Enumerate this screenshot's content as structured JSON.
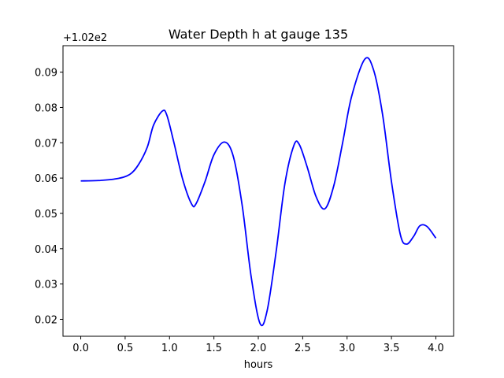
{
  "chart_data": {
    "type": "line",
    "title": "Water Depth h at gauge 135",
    "xlabel": "hours",
    "ylabel": "",
    "offset_label": "+1.02e2",
    "xlim": [
      -0.2,
      4.2
    ],
    "ylim": [
      0.0152,
      0.0975
    ],
    "x_ticks": [
      0.0,
      0.5,
      1.0,
      1.5,
      2.0,
      2.5,
      3.0,
      3.5,
      4.0
    ],
    "x_tick_labels": [
      "0.0",
      "0.5",
      "1.0",
      "1.5",
      "2.0",
      "2.5",
      "3.0",
      "3.5",
      "4.0"
    ],
    "y_ticks": [
      0.02,
      0.03,
      0.04,
      0.05,
      0.06,
      0.07,
      0.08,
      0.09
    ],
    "y_tick_labels": [
      "0.02",
      "0.03",
      "0.04",
      "0.05",
      "0.06",
      "0.07",
      "0.08",
      "0.09"
    ],
    "grid": false,
    "series": [
      {
        "color": "#0000ff",
        "x": [
          0.0,
          0.2,
          0.4,
          0.55,
          0.65,
          0.75,
          0.82,
          0.92,
          0.97,
          1.05,
          1.15,
          1.25,
          1.3,
          1.4,
          1.5,
          1.62,
          1.72,
          1.82,
          1.92,
          2.02,
          2.1,
          2.2,
          2.3,
          2.4,
          2.46,
          2.55,
          2.65,
          2.75,
          2.85,
          2.95,
          3.05,
          3.2,
          3.3,
          3.4,
          3.5,
          3.6,
          3.67,
          3.75,
          3.82,
          3.9,
          4.0
        ],
        "y": [
          0.0592,
          0.0593,
          0.0598,
          0.061,
          0.0638,
          0.0688,
          0.075,
          0.079,
          0.0778,
          0.07,
          0.0595,
          0.0526,
          0.0528,
          0.059,
          0.0666,
          0.0702,
          0.066,
          0.052,
          0.032,
          0.0188,
          0.0225,
          0.039,
          0.0585,
          0.0692,
          0.0696,
          0.0632,
          0.0548,
          0.0513,
          0.0578,
          0.07,
          0.083,
          0.0937,
          0.0905,
          0.078,
          0.059,
          0.044,
          0.0413,
          0.0435,
          0.0465,
          0.0463,
          0.043
        ]
      }
    ]
  }
}
